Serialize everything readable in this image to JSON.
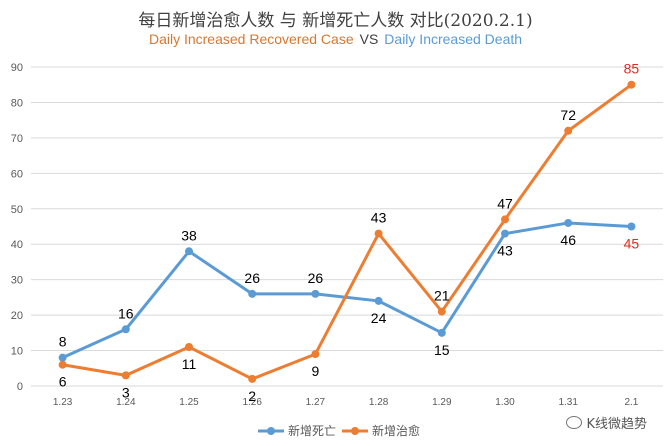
{
  "chart_data": {
    "type": "line",
    "title": "每日新增治愈人数 与 新增死亡人数 对比(2020.2.1)",
    "subtitle_parts": {
      "recovered": "Daily Increased Recovered Case",
      "vs": "VS",
      "death": "Daily Increased Death"
    },
    "categories": [
      "1.23",
      "1.24",
      "1.25",
      "1.26",
      "1.27",
      "1.28",
      "1.29",
      "1.30",
      "1.31",
      "2.1"
    ],
    "ylim": [
      0,
      90
    ],
    "yticks": [
      0,
      10,
      20,
      30,
      40,
      50,
      60,
      70,
      80,
      90
    ],
    "grid": true,
    "legend": "bottom",
    "series": [
      {
        "name": "新增死亡",
        "color": "#5b9bd5",
        "values": [
          8,
          16,
          38,
          26,
          26,
          24,
          15,
          43,
          46,
          45
        ]
      },
      {
        "name": "新增治愈",
        "color": "#ed7d31",
        "values": [
          6,
          3,
          11,
          2,
          9,
          43,
          21,
          47,
          72,
          85
        ]
      }
    ],
    "highlight_color": "#e02b20"
  },
  "watermark": "K线微趋势"
}
